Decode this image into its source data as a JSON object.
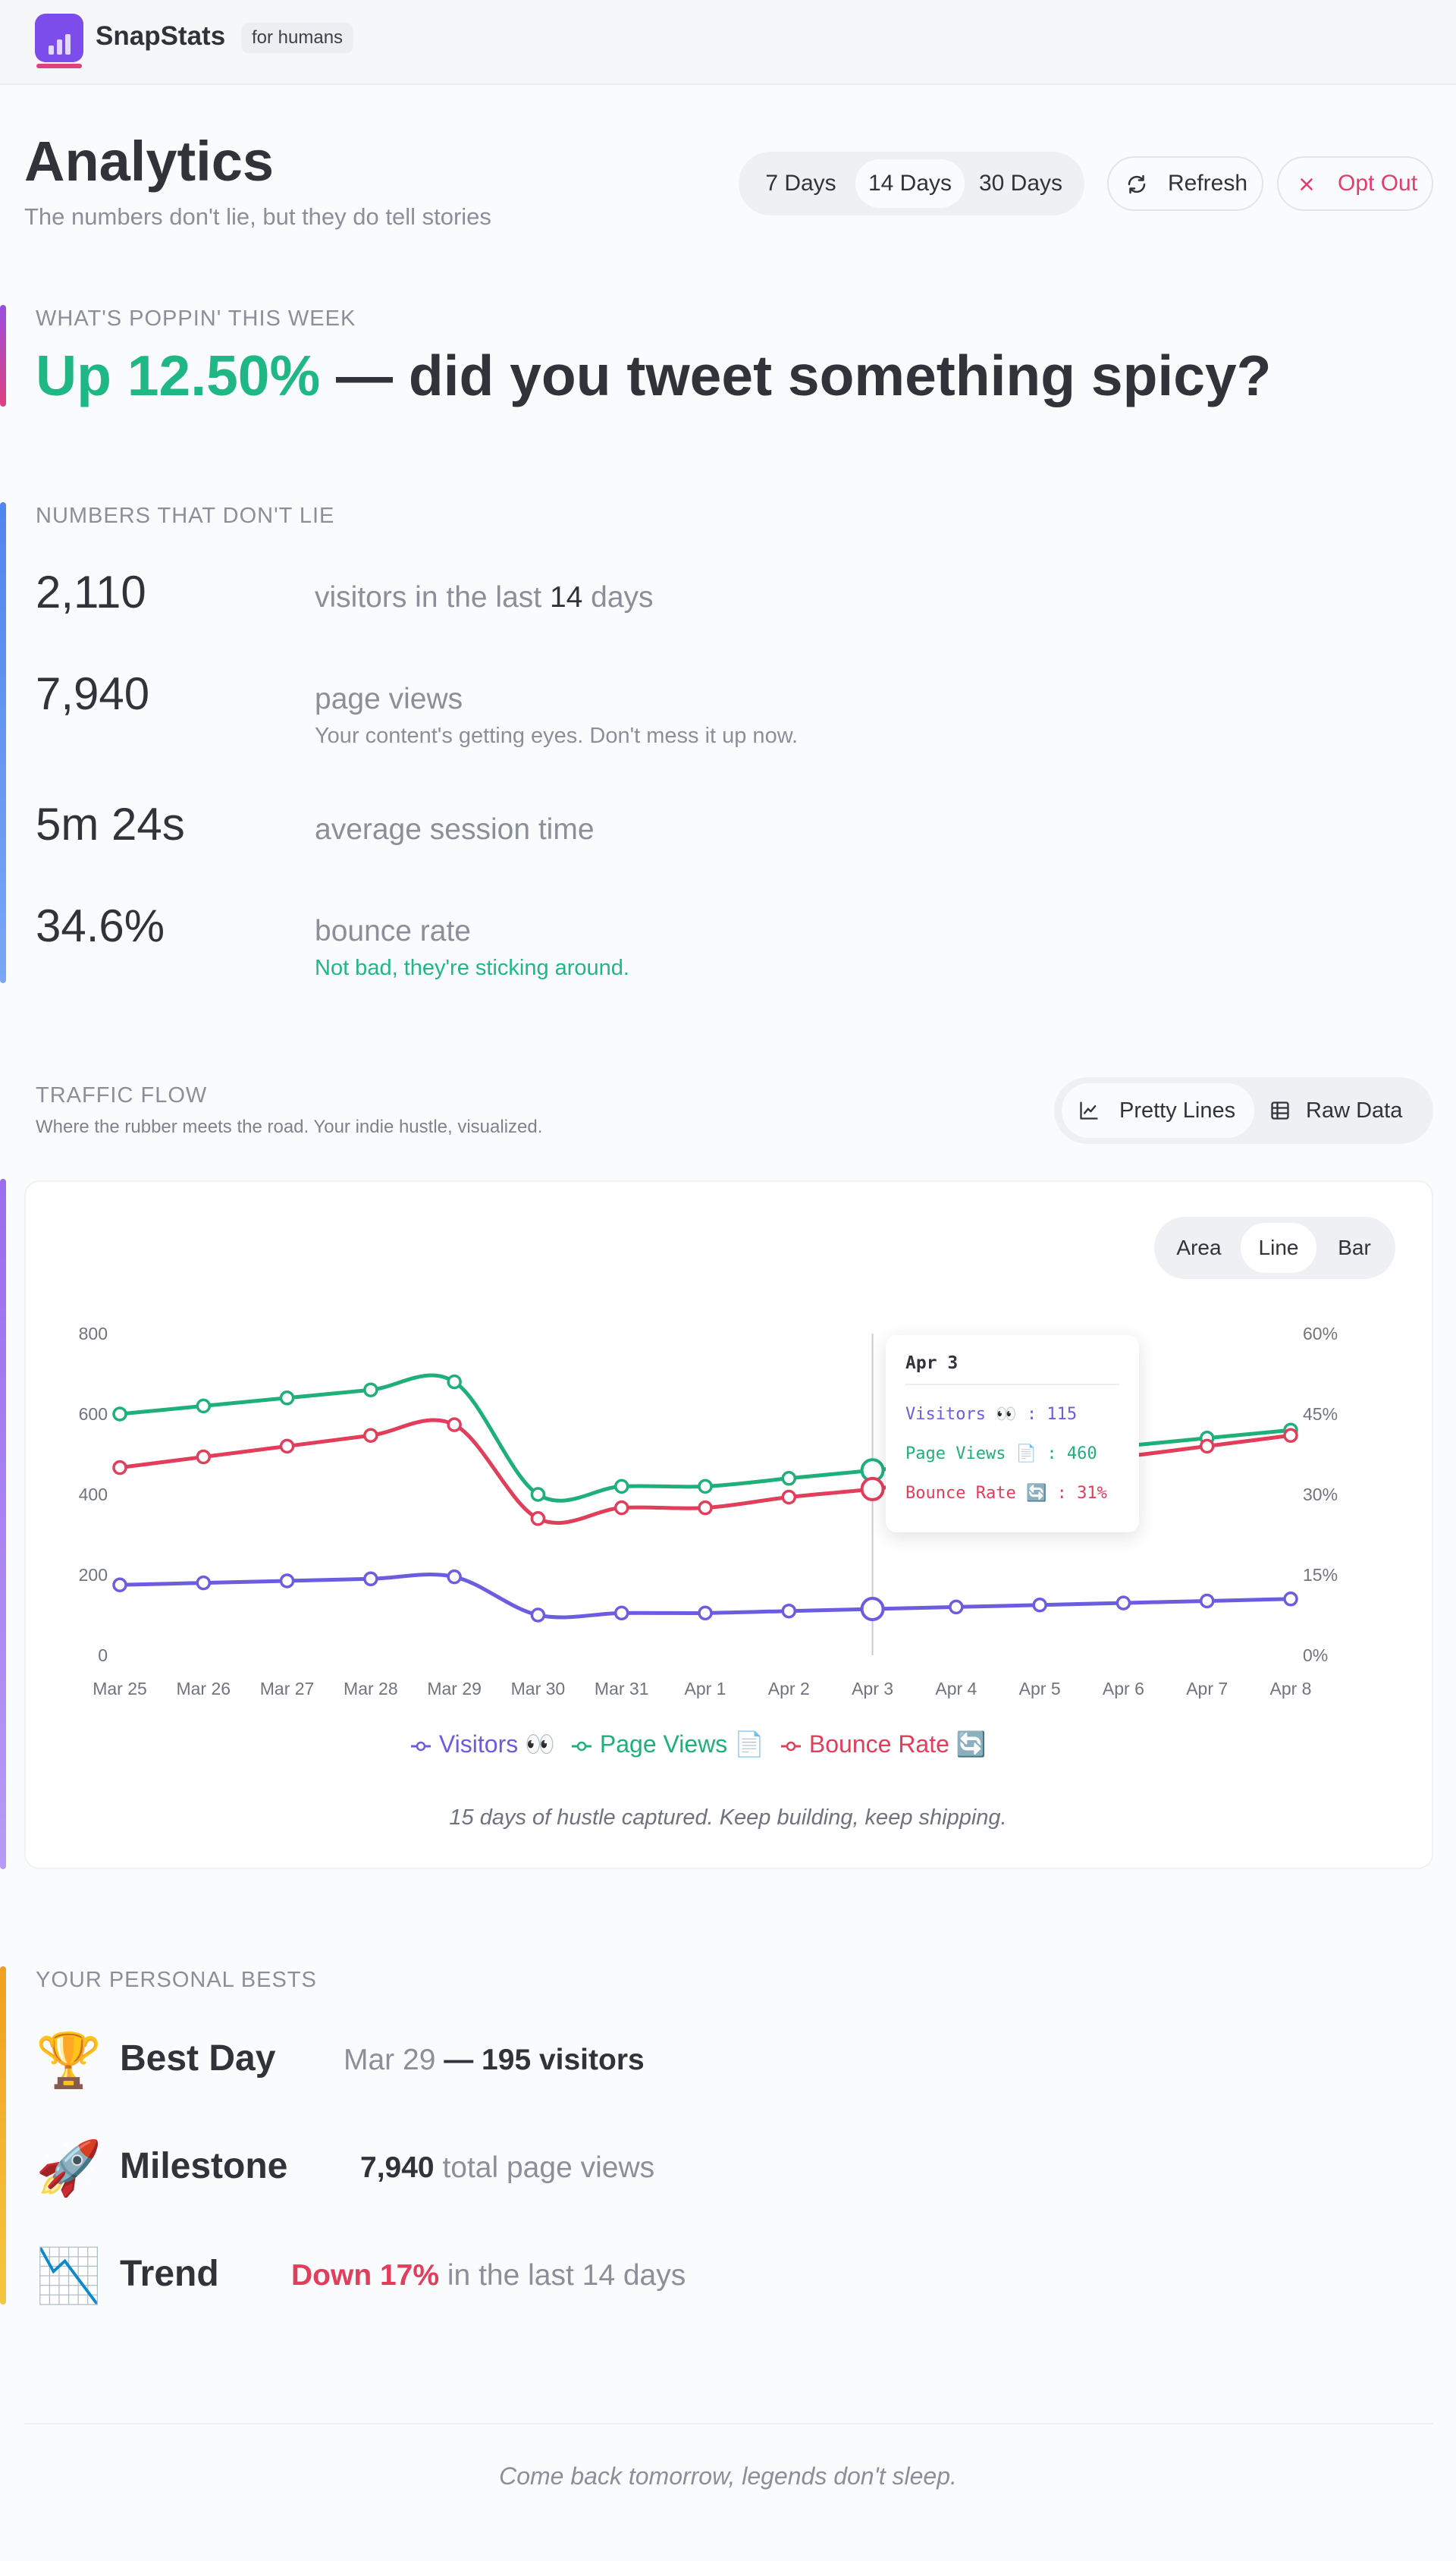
{
  "header": {
    "brand": "SnapStats",
    "tag": "for humans"
  },
  "page": {
    "title": "Analytics",
    "subtitle": "The numbers don't lie, but they do tell stories"
  },
  "controls": {
    "ranges": [
      "7 Days",
      "14 Days",
      "30 Days"
    ],
    "active_range": "14 Days",
    "refresh_label": "Refresh",
    "opt_out_label": "Opt Out"
  },
  "highlight": {
    "eyebrow": "WHAT'S POPPIN' THIS WEEK",
    "change": "Up 12.50%",
    "rest": " — did you tweet something spicy?"
  },
  "stats": {
    "eyebrow": "NUMBERS THAT DON'T LIE",
    "visitors_value": "2,110",
    "visitors_label_pre": "visitors in the last ",
    "visitors_days": "14",
    "visitors_label_post": " days",
    "pageviews_value": "7,940",
    "pageviews_label": "page views",
    "pageviews_note": "Your content's getting eyes. Don't mess it up now.",
    "session_value": "5m 24s",
    "session_label": "average session time",
    "bounce_value": "34.6%",
    "bounce_label": "bounce rate",
    "bounce_note": "Not bad, they're sticking around."
  },
  "traffic": {
    "eyebrow": "TRAFFIC FLOW",
    "subtitle": "Where the rubber meets the road. Your indie hustle, visualized.",
    "views": [
      "Pretty Lines",
      "Raw Data"
    ],
    "active_view": "Pretty Lines",
    "chart_types": [
      "Area",
      "Line",
      "Bar"
    ],
    "active_chart_type": "Line",
    "caption": "15 days of hustle captured. Keep building, keep shipping.",
    "tooltip": {
      "title": "Apr 3",
      "rows": [
        "Visitors 👀 : 115",
        "Page Views 📄 : 460",
        "Bounce Rate 🔄 : 31%"
      ]
    }
  },
  "colors": {
    "visitors": "#6b5ce0",
    "pageviews": "#1fb07a",
    "bounce": "#e23d5a"
  },
  "chart_data": {
    "type": "line",
    "categories": [
      "Mar 25",
      "Mar 26",
      "Mar 27",
      "Mar 28",
      "Mar 29",
      "Mar 30",
      "Mar 31",
      "Apr 1",
      "Apr 2",
      "Apr 3",
      "Apr 4",
      "Apr 5",
      "Apr 6",
      "Apr 7",
      "Apr 8"
    ],
    "series": [
      {
        "name": "Visitors 👀",
        "axis": "left",
        "values": [
          175,
          180,
          185,
          190,
          195,
          100,
          105,
          105,
          110,
          115,
          120,
          125,
          130,
          135,
          140
        ]
      },
      {
        "name": "Page Views 📄",
        "axis": "left",
        "values": [
          600,
          620,
          640,
          660,
          680,
          400,
          420,
          420,
          440,
          460,
          480,
          500,
          520,
          540,
          560
        ]
      },
      {
        "name": "Bounce Rate 🔄",
        "axis": "right",
        "values": [
          35,
          37,
          39,
          41,
          43,
          25.5,
          27.5,
          27.5,
          29.5,
          31,
          33,
          35,
          37,
          39,
          41
        ]
      }
    ],
    "y_left": {
      "min": 0,
      "max": 800,
      "ticks": [
        "0",
        "200",
        "400",
        "600",
        "800"
      ]
    },
    "y_right": {
      "min": 0,
      "max": 60,
      "ticks": [
        "0%",
        "15%",
        "30%",
        "45%",
        "60%"
      ]
    },
    "highlight_category": "Apr 3",
    "legend_position": "bottom",
    "grid": false
  },
  "bests": {
    "eyebrow": "YOUR PERSONAL BESTS",
    "items": [
      {
        "emoji": "🏆",
        "title": "Best Day",
        "desc_a": "Mar 29",
        "desc_b": " — 195 visitors"
      },
      {
        "emoji": "🚀",
        "title": "Milestone",
        "desc_a": "7,940",
        "desc_b": " total page views"
      },
      {
        "emoji": "📉",
        "title": "Trend",
        "desc_a": "Down 17%",
        "desc_b": " in the last 14 days"
      }
    ]
  },
  "footer": {
    "text": "Come back tomorrow, legends don't sleep."
  }
}
